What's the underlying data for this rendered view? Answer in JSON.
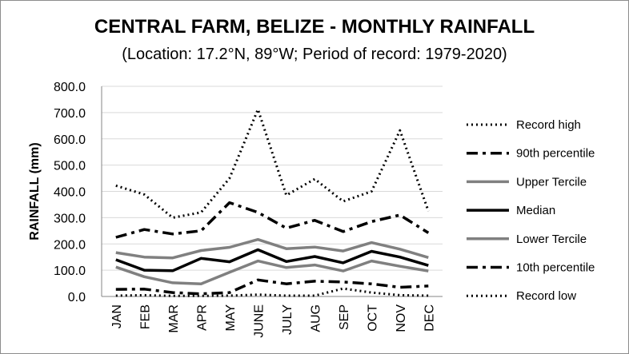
{
  "chart_data": {
    "type": "line",
    "title": "CENTRAL FARM, BELIZE - MONTHLY RAINFALL",
    "subtitle": "(Location: 17.2°N, 89°W; Period of record: 1979-2020)",
    "xlabel": "",
    "ylabel": "RAINFALL (mm)",
    "ylim": [
      0,
      800
    ],
    "yticks": [
      "0.0",
      "100.0",
      "200.0",
      "300.0",
      "400.0",
      "500.0",
      "600.0",
      "700.0",
      "800.0"
    ],
    "categories": [
      "JAN",
      "FEB",
      "MAR",
      "APR",
      "MAY",
      "JUNE",
      "JULY",
      "AUG",
      "SEP",
      "OCT",
      "NOV",
      "DEC"
    ],
    "grid": "horizontal",
    "legend_position": "right",
    "series": [
      {
        "name": "Record high",
        "color": "#000000",
        "style": "dotted",
        "values": [
          422,
          388,
          300,
          320,
          450,
          712,
          385,
          447,
          362,
          400,
          632,
          325
        ]
      },
      {
        "name": "90th percentile",
        "color": "#000000",
        "style": "dashdot",
        "values": [
          225,
          255,
          238,
          250,
          357,
          320,
          260,
          290,
          247,
          285,
          310,
          242
        ]
      },
      {
        "name": "Upper Tercile",
        "color": "#808080",
        "style": "solid",
        "values": [
          167,
          150,
          147,
          175,
          187,
          217,
          182,
          188,
          173,
          205,
          180,
          148
        ]
      },
      {
        "name": "Median",
        "color": "#000000",
        "style": "solid",
        "values": [
          140,
          100,
          98,
          145,
          132,
          178,
          133,
          152,
          128,
          172,
          150,
          118
        ]
      },
      {
        "name": "Lower Tercile",
        "color": "#808080",
        "style": "solid",
        "values": [
          112,
          75,
          52,
          48,
          92,
          135,
          110,
          120,
          97,
          135,
          115,
          97
        ]
      },
      {
        "name": "10th percentile",
        "color": "#000000",
        "style": "dashdot",
        "values": [
          27,
          28,
          15,
          10,
          15,
          63,
          48,
          58,
          55,
          48,
          35,
          40
        ]
      },
      {
        "name": "Record low",
        "color": "#000000",
        "style": "dotted",
        "values": [
          3,
          5,
          2,
          2,
          3,
          7,
          3,
          3,
          30,
          15,
          5,
          3
        ]
      }
    ]
  }
}
